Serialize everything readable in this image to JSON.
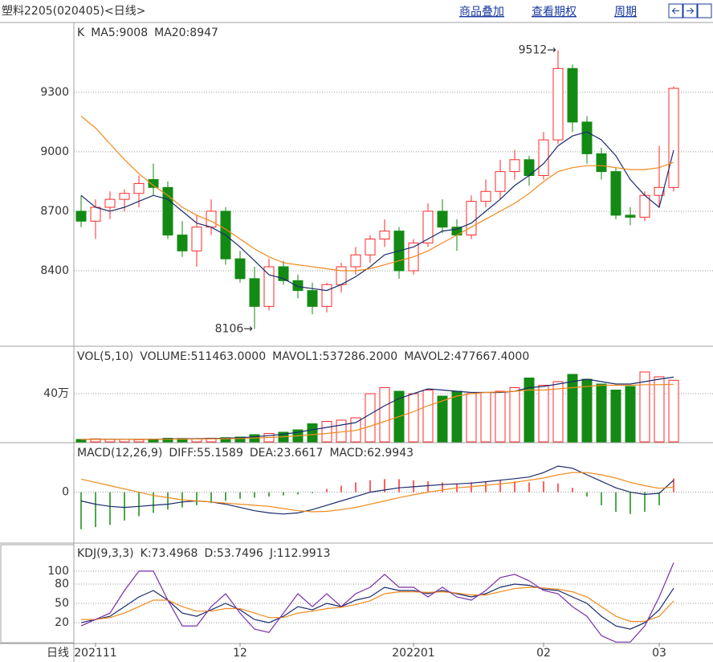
{
  "header": {
    "title": "塑料2205(020405)<日线>",
    "links": [
      "商品叠加",
      "查看期权",
      "周期"
    ]
  },
  "chart_data": [
    {
      "type": "candlestick",
      "legend_title": "K",
      "up_color": "#ff2a2a",
      "down_color": "#138a13",
      "candles": [
        [
          8700,
          8780,
          8620,
          8650
        ],
        [
          8650,
          8760,
          8560,
          8720
        ],
        [
          8720,
          8800,
          8660,
          8760
        ],
        [
          8760,
          8810,
          8700,
          8790
        ],
        [
          8790,
          8880,
          8720,
          8840
        ],
        [
          8860,
          8940,
          8780,
          8820
        ],
        [
          8820,
          8850,
          8560,
          8580
        ],
        [
          8580,
          8650,
          8470,
          8500
        ],
        [
          8500,
          8680,
          8420,
          8620
        ],
        [
          8620,
          8760,
          8580,
          8700
        ],
        [
          8700,
          8720,
          8430,
          8460
        ],
        [
          8460,
          8500,
          8340,
          8360
        ],
        [
          8360,
          8420,
          8106,
          8220
        ],
        [
          8220,
          8460,
          8200,
          8420
        ],
        [
          8420,
          8450,
          8330,
          8350
        ],
        [
          8350,
          8380,
          8260,
          8300
        ],
        [
          8300,
          8340,
          8180,
          8220
        ],
        [
          8220,
          8340,
          8190,
          8330
        ],
        [
          8330,
          8440,
          8290,
          8420
        ],
        [
          8420,
          8520,
          8380,
          8480
        ],
        [
          8480,
          8580,
          8440,
          8560
        ],
        [
          8560,
          8660,
          8520,
          8600
        ],
        [
          8600,
          8620,
          8360,
          8400
        ],
        [
          8400,
          8560,
          8380,
          8540
        ],
        [
          8540,
          8740,
          8520,
          8700
        ],
        [
          8700,
          8760,
          8590,
          8620
        ],
        [
          8620,
          8660,
          8500,
          8580
        ],
        [
          8580,
          8780,
          8560,
          8750
        ],
        [
          8750,
          8860,
          8720,
          8800
        ],
        [
          8800,
          8960,
          8760,
          8900
        ],
        [
          8900,
          9010,
          8860,
          8960
        ],
        [
          8960,
          8980,
          8830,
          8880
        ],
        [
          8880,
          9100,
          8860,
          9060
        ],
        [
          9060,
          9512,
          9040,
          9420
        ],
        [
          9420,
          9440,
          9100,
          9150
        ],
        [
          9150,
          9180,
          8940,
          8990
        ],
        [
          8990,
          9020,
          8860,
          8900
        ],
        [
          8900,
          8920,
          8660,
          8680
        ],
        [
          8680,
          8720,
          8630,
          8670
        ],
        [
          8670,
          8800,
          8650,
          8780
        ],
        [
          8780,
          9030,
          8720,
          8820
        ],
        [
          8820,
          9330,
          8800,
          9320
        ]
      ],
      "series": [
        {
          "name": "MA5:9008",
          "color": "#1a2b6b",
          "values": [
            8780,
            8720,
            8700,
            8720,
            8750,
            8780,
            8760,
            8700,
            8640,
            8620,
            8580,
            8520,
            8450,
            8380,
            8360,
            8320,
            8310,
            8300,
            8330,
            8370,
            8420,
            8480,
            8500,
            8520,
            8560,
            8600,
            8610,
            8640,
            8700,
            8760,
            8830,
            8880,
            8940,
            9030,
            9080,
            9100,
            9060,
            8980,
            8860,
            8780,
            8720,
            9008
          ]
        },
        {
          "name": "MA20:8947",
          "color": "#f08a1c",
          "values": [
            9180,
            9120,
            9040,
            8960,
            8890,
            8830,
            8780,
            8720,
            8680,
            8650,
            8610,
            8560,
            8510,
            8470,
            8440,
            8430,
            8420,
            8410,
            8400,
            8400,
            8410,
            8430,
            8450,
            8470,
            8500,
            8540,
            8580,
            8620,
            8660,
            8700,
            8740,
            8790,
            8850,
            8900,
            8920,
            8930,
            8930,
            8920,
            8910,
            8910,
            8920,
            8947
          ]
        }
      ],
      "annotations": [
        "9512→",
        "8106→"
      ],
      "ylim": [
        8023,
        9644
      ],
      "yticks": [
        8400,
        8700,
        9000,
        9300
      ],
      "grid": true
    },
    {
      "type": "volume",
      "legend_title": "VOL(5,10)",
      "bars": {
        "name": "VOLUME:511463.0000",
        "color": "#333333",
        "values": [
          20000,
          25000,
          22000,
          20000,
          18000,
          22000,
          30000,
          28000,
          25000,
          30000,
          35000,
          40000,
          60000,
          70000,
          80000,
          100000,
          150000,
          170000,
          180000,
          200000,
          400000,
          450000,
          420000,
          400000,
          430000,
          380000,
          420000,
          400000,
          410000,
          420000,
          450000,
          530000,
          470000,
          500000,
          560000,
          520000,
          480000,
          430000,
          460000,
          580000,
          540000,
          511463
        ]
      },
      "series": [
        {
          "name": "MAVOL1:537286.2000",
          "color": "#1a2b6b",
          "values": [
            20000,
            22000,
            22000,
            21000,
            21000,
            22000,
            24000,
            26000,
            27000,
            28000,
            30000,
            35000,
            42000,
            52000,
            63000,
            80000,
            100000,
            120000,
            140000,
            160000,
            230000,
            300000,
            360000,
            400000,
            440000,
            430000,
            420000,
            410000,
            410000,
            410000,
            420000,
            450000,
            460000,
            480000,
            500000,
            520000,
            500000,
            480000,
            480000,
            500000,
            520000,
            537286
          ]
        },
        {
          "name": "MAVOL2:477667.4000",
          "color": "#f08a1c",
          "values": [
            20000,
            21000,
            21000,
            21000,
            21000,
            21000,
            22000,
            23000,
            24000,
            25000,
            26000,
            28000,
            32000,
            37000,
            42000,
            50000,
            60000,
            70000,
            82000,
            95000,
            130000,
            170000,
            210000,
            250000,
            300000,
            340000,
            380000,
            400000,
            410000,
            415000,
            420000,
            430000,
            430000,
            440000,
            450000,
            460000,
            470000,
            470000,
            470000,
            475000,
            475000,
            477667
          ]
        }
      ],
      "ylim": [
        0,
        780000
      ],
      "yticks": [
        {
          "value": 400000,
          "label": "40万"
        }
      ],
      "grid": true
    },
    {
      "type": "macd",
      "legend_title": "MACD(12,26,9)",
      "up_color": "#ff2a2a",
      "down_color": "#138a13",
      "series": [
        {
          "name": "DIFF:55.1589",
          "color": "#1a2b6b",
          "values": [
            -40,
            -55,
            -65,
            -70,
            -65,
            -60,
            -55,
            -45,
            -40,
            -45,
            -55,
            -70,
            -85,
            -95,
            -100,
            -95,
            -80,
            -60,
            -40,
            -20,
            0,
            10,
            20,
            25,
            30,
            35,
            38,
            42,
            48,
            55,
            62,
            70,
            90,
            120,
            110,
            80,
            50,
            20,
            0,
            -10,
            -5,
            55.1589
          ]
        },
        {
          "name": "DEA:23.6617",
          "color": "#f08a1c",
          "values": [
            60,
            45,
            30,
            15,
            0,
            -15,
            -25,
            -35,
            -40,
            -45,
            -50,
            -55,
            -60,
            -65,
            -75,
            -85,
            -90,
            -88,
            -80,
            -70,
            -55,
            -40,
            -25,
            -12,
            0,
            10,
            20,
            25,
            32,
            38,
            45,
            55,
            65,
            80,
            90,
            90,
            80,
            65,
            45,
            30,
            18,
            23.6617
          ]
        }
      ],
      "bars": {
        "name": "MACD:62.9943",
        "color": "#333333",
        "values": [
          -170,
          -160,
          -150,
          -130,
          -110,
          -95,
          -80,
          -70,
          -60,
          -50,
          -40,
          -30,
          -25,
          -20,
          -15,
          -10,
          -5,
          15,
          30,
          45,
          55,
          60,
          60,
          55,
          50,
          45,
          40,
          45,
          50,
          55,
          50,
          45,
          50,
          40,
          20,
          -20,
          -60,
          -90,
          -100,
          -90,
          -60,
          62.9943
        ]
      },
      "ylim": [
        -230,
        220
      ],
      "yticks": [
        0
      ],
      "grid": true
    },
    {
      "type": "line",
      "legend_title": "KDJ(9,3,3)",
      "series": [
        {
          "name": "K:73.4968",
          "color": "#1a2b6b",
          "values": [
            20,
            25,
            30,
            45,
            60,
            70,
            55,
            35,
            30,
            40,
            50,
            40,
            25,
            20,
            30,
            45,
            40,
            50,
            45,
            55,
            60,
            75,
            70,
            70,
            65,
            70,
            65,
            60,
            65,
            75,
            80,
            78,
            72,
            70,
            60,
            50,
            30,
            15,
            10,
            20,
            40,
            73.4968
          ]
        },
        {
          "name": "D:53.7496",
          "color": "#f08a1c",
          "values": [
            25,
            25,
            28,
            35,
            45,
            55,
            55,
            45,
            38,
            38,
            42,
            42,
            35,
            28,
            28,
            35,
            38,
            42,
            44,
            48,
            54,
            65,
            68,
            68,
            67,
            68,
            66,
            63,
            63,
            68,
            73,
            75,
            74,
            72,
            68,
            60,
            45,
            30,
            22,
            22,
            30,
            53.7496
          ]
        },
        {
          "name": "J:112.9913",
          "color": "#7a2fa8",
          "values": [
            15,
            25,
            35,
            70,
            100,
            100,
            55,
            15,
            15,
            45,
            65,
            35,
            10,
            5,
            35,
            65,
            45,
            65,
            45,
            65,
            75,
            95,
            75,
            75,
            60,
            75,
            60,
            55,
            70,
            90,
            95,
            85,
            70,
            65,
            45,
            30,
            0,
            -10,
            -10,
            15,
            60,
            112.9913
          ]
        }
      ],
      "categories": [
        null,
        "202111",
        null,
        null,
        null,
        null,
        null,
        null,
        null,
        null,
        null,
        "12",
        null,
        null,
        null,
        null,
        null,
        null,
        null,
        null,
        null,
        null,
        null,
        "202201",
        null,
        null,
        null,
        null,
        null,
        null,
        null,
        null,
        "02",
        null,
        null,
        null,
        null,
        null,
        null,
        null,
        "03",
        null
      ],
      "x_axis_title": "日线",
      "ylim": [
        -11,
        141
      ],
      "yticks": [
        100,
        80,
        50,
        20
      ],
      "grid": true
    }
  ]
}
